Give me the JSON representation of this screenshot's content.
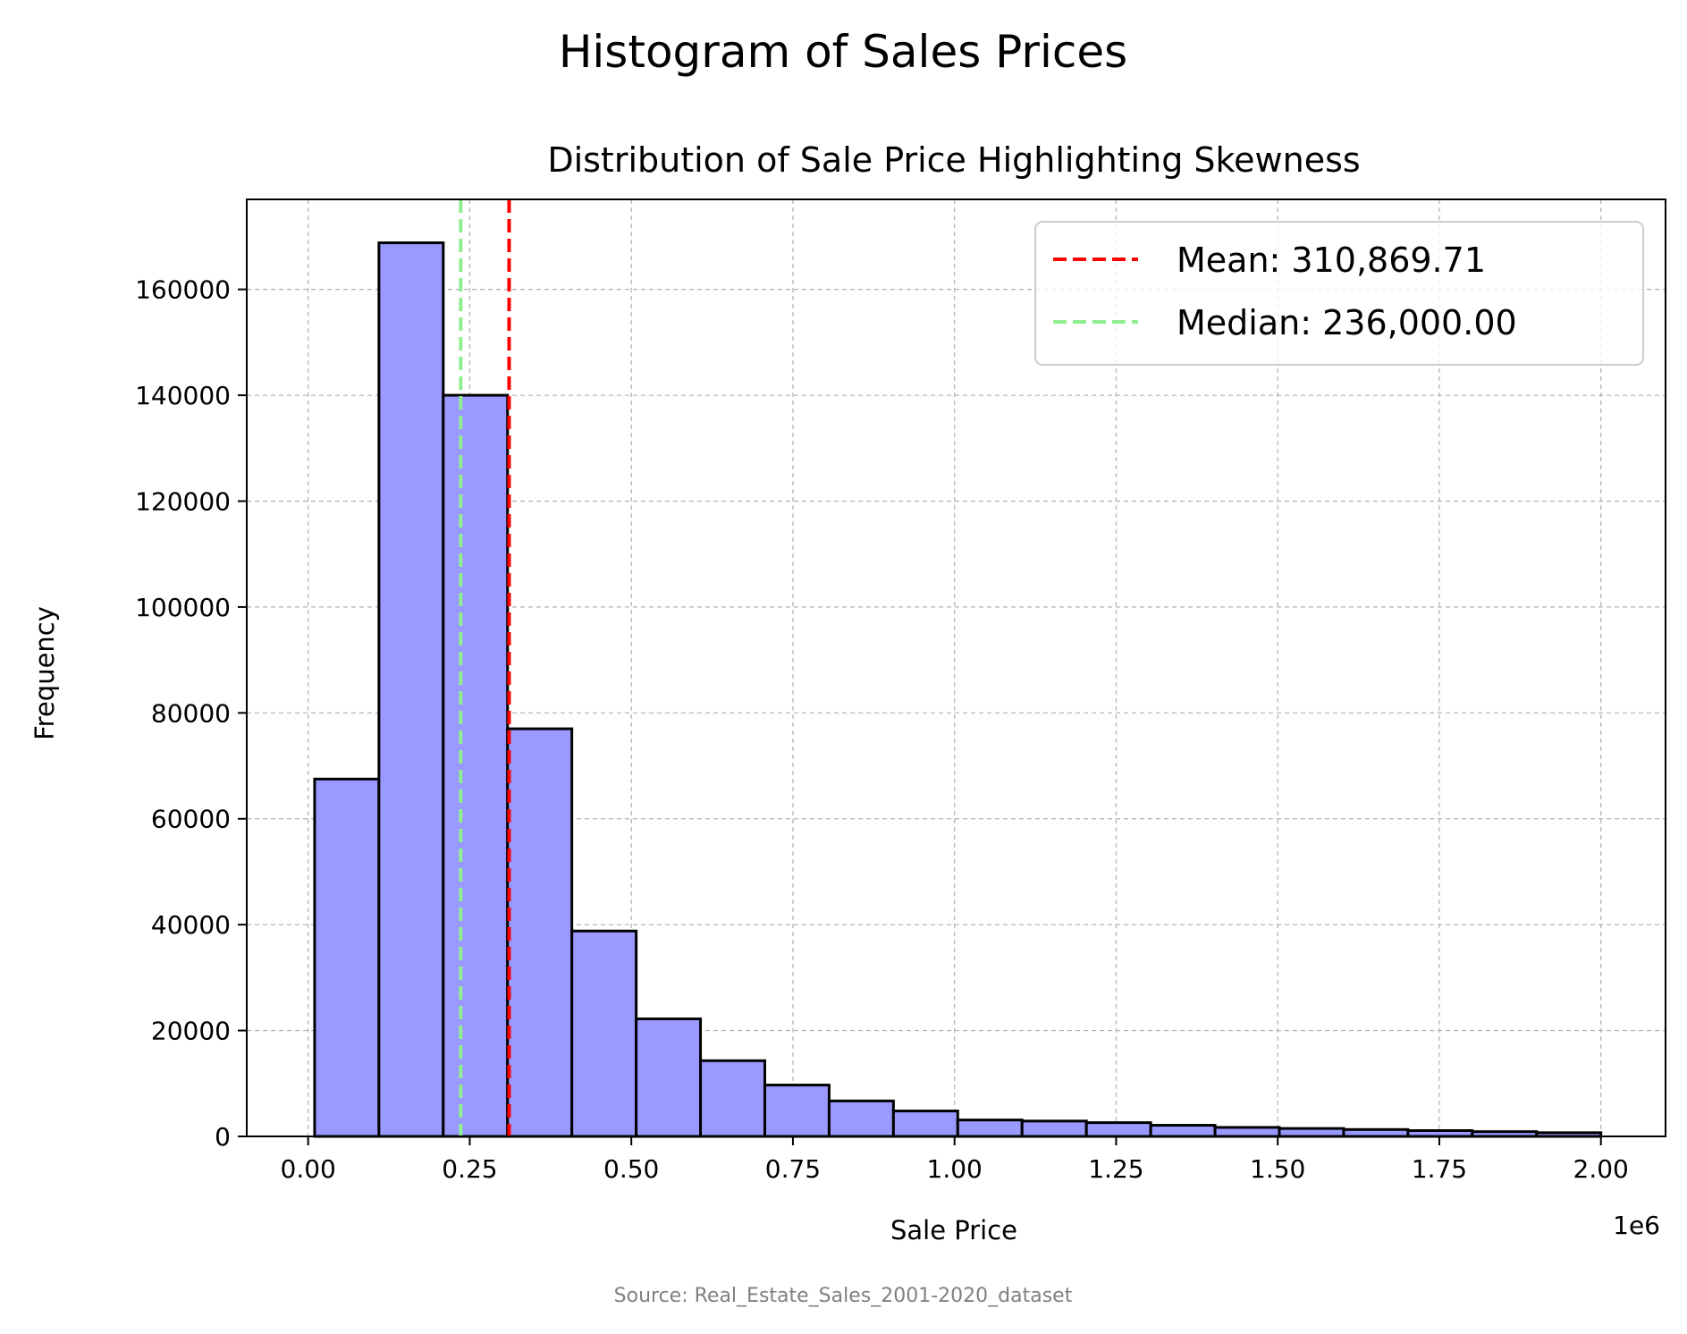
{
  "chart_data": {
    "type": "bar",
    "suptitle": "Histogram of Sales Prices",
    "title": "Distribution of Sale Price Highlighting Skewness",
    "xlabel": "Sale Price",
    "ylabel": "Frequency",
    "x_offset_label": "1e6",
    "source": "Source: Real_Estate_Sales_2001-2020_dataset",
    "xlim": [
      -0.095,
      2.1
    ],
    "ylim": [
      0,
      177000
    ],
    "x_ticks": [
      0.0,
      0.25,
      0.5,
      0.75,
      1.0,
      1.25,
      1.5,
      1.75,
      2.0
    ],
    "x_tick_labels": [
      "0.00",
      "0.25",
      "0.50",
      "0.75",
      "1.00",
      "1.25",
      "1.50",
      "1.75",
      "2.00"
    ],
    "y_ticks": [
      0,
      20000,
      40000,
      60000,
      80000,
      100000,
      120000,
      140000,
      160000
    ],
    "y_tick_labels": [
      "0",
      "20000",
      "40000",
      "60000",
      "80000",
      "100000",
      "120000",
      "140000",
      "160000"
    ],
    "grid": true,
    "bin_edges": [
      0.01,
      0.1095,
      0.209,
      0.3085,
      0.408,
      0.5075,
      0.607,
      0.7065,
      0.806,
      0.9055,
      1.005,
      1.1045,
      1.204,
      1.3035,
      1.403,
      1.5025,
      1.602,
      1.7015,
      1.801,
      1.9005,
      2.0
    ],
    "values": [
      67500,
      168800,
      140000,
      77000,
      38800,
      22200,
      14300,
      9700,
      6700,
      4800,
      3100,
      2900,
      2600,
      2100,
      1700,
      1500,
      1300,
      1100,
      900,
      700
    ],
    "bar_color": "#9999ff",
    "bar_edge_color": "#000000",
    "vlines": [
      {
        "name": "Mean: 310,869.71",
        "x": 0.31086971,
        "color": "#ff0000"
      },
      {
        "name": "Median: 236,000.00",
        "x": 0.236,
        "color": "#90ee90"
      }
    ],
    "legend_position": "upper right"
  }
}
